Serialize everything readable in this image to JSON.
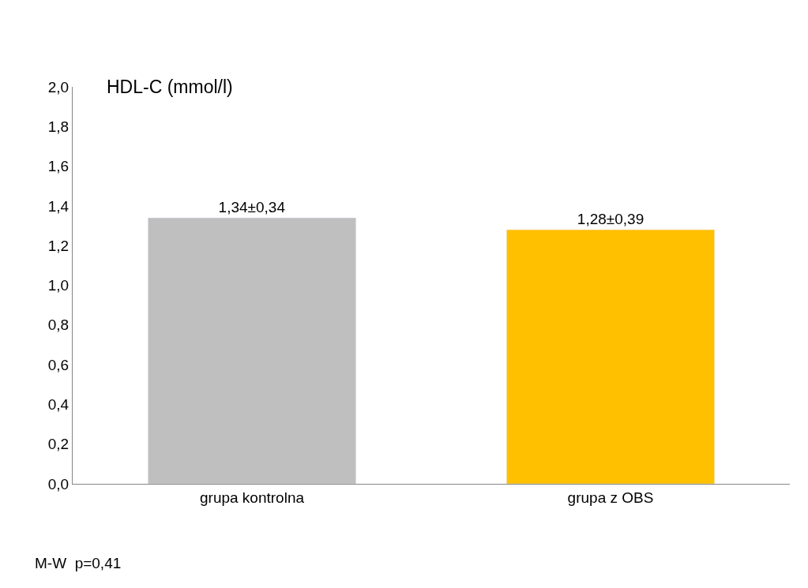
{
  "chart_data": {
    "type": "bar",
    "ylabel": "HDL-C (mmol/l)",
    "categories": [
      "grupa kontrolna",
      "grupa z OBS"
    ],
    "values": [
      1.34,
      1.28
    ],
    "colors": [
      "#bfbfbf",
      "#ffc000"
    ],
    "value_labels": [
      "1,34±0,34",
      "1,28±0,39"
    ],
    "ylim": [
      0,
      2
    ],
    "yticks": [
      {
        "value": 0,
        "label": "0,0"
      },
      {
        "value": 0.2,
        "label": "0,2"
      },
      {
        "value": 0.4,
        "label": "0,4"
      },
      {
        "value": 0.6,
        "label": "0,6"
      },
      {
        "value": 0.8,
        "label": "0,8"
      },
      {
        "value": 1.0,
        "label": "1,0"
      },
      {
        "value": 1.2,
        "label": "1,2"
      },
      {
        "value": 1.4,
        "label": "1,4"
      },
      {
        "value": 1.6,
        "label": "1,6"
      },
      {
        "value": 1.8,
        "label": "1,8"
      },
      {
        "value": 2.0,
        "label": "2,0"
      }
    ],
    "annotations": [
      "M-W  p=0,41"
    ]
  }
}
